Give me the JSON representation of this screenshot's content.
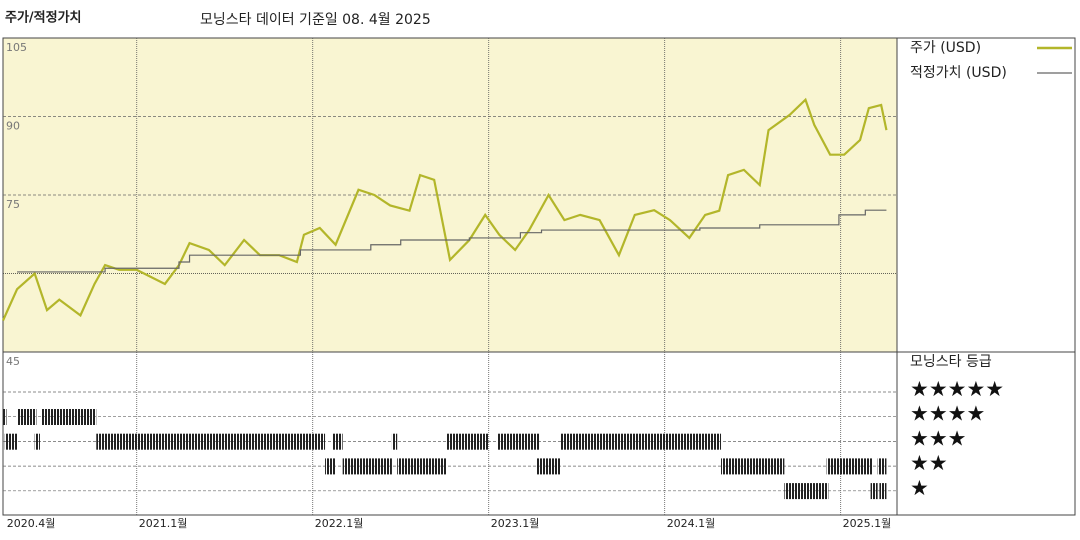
{
  "chart_data": {
    "type": "line",
    "title": "주가/적정가치",
    "subtitle": "모닝스타 데이터 기준일 08. 4월 2025",
    "xlim": [
      2020.24,
      2025.32
    ],
    "xticks": [
      {
        "value": 2020.25,
        "label": "2020.4월"
      },
      {
        "value": 2021,
        "label": "2021.1월"
      },
      {
        "value": 2022,
        "label": "2022.1월"
      },
      {
        "value": 2023,
        "label": "2023.1월"
      },
      {
        "value": 2024,
        "label": "2024.1월"
      },
      {
        "value": 2025,
        "label": "2025.1월"
      }
    ],
    "ylim": [
      45,
      105
    ],
    "yticks": [
      45,
      75,
      90,
      105
    ],
    "unlabeled_yticks": [
      60
    ],
    "series": [
      {
        "name": "주가 (USD)",
        "color": "#b3b62a",
        "step": false,
        "x": [
          2020.24,
          2020.32,
          2020.42,
          2020.49,
          2020.56,
          2020.68,
          2020.76,
          2020.82,
          2020.9,
          2021.0,
          2021.16,
          2021.24,
          2021.3,
          2021.41,
          2021.5,
          2021.61,
          2021.7,
          2021.81,
          2021.91,
          2021.95,
          2022.04,
          2022.13,
          2022.26,
          2022.35,
          2022.44,
          2022.55,
          2022.61,
          2022.69,
          2022.78,
          2022.89,
          2022.98,
          2023.06,
          2023.15,
          2023.23,
          2023.34,
          2023.43,
          2023.52,
          2023.63,
          2023.74,
          2023.83,
          2023.94,
          2024.03,
          2024.14,
          2024.23,
          2024.31,
          2024.36,
          2024.45,
          2024.54,
          2024.59,
          2024.71,
          2024.8,
          2024.85,
          2024.94,
          2025.02,
          2025.11,
          2025.16,
          2025.23,
          2025.26
        ],
        "values": [
          51,
          57,
          60,
          53,
          55,
          52,
          58,
          61.6,
          60.7,
          60.7,
          58,
          61.6,
          65.8,
          64.5,
          61.6,
          66.4,
          63.5,
          63.5,
          62.2,
          67.4,
          68.7,
          65.5,
          76,
          75,
          73,
          72,
          78.8,
          77.9,
          62.6,
          66.4,
          71.2,
          67.4,
          64.5,
          68.3,
          75,
          70.2,
          71.2,
          70.2,
          63.5,
          71.2,
          72.1,
          70.2,
          66.8,
          71.2,
          72,
          78.8,
          79.8,
          76.9,
          87.4,
          90.3,
          93.2,
          88.4,
          82.7,
          82.7,
          85.5,
          91.6,
          92.2,
          87.4
        ]
      },
      {
        "name": "적정가치 (USD)",
        "color": "#666666",
        "step": true,
        "x": [
          2020.32,
          2020.82,
          2021.24,
          2021.3,
          2021.93,
          2022.33,
          2022.5,
          2022.89,
          2023.18,
          2023.3,
          2024.2,
          2024.54,
          2024.99,
          2025.14,
          2025.26
        ],
        "values": [
          60.3,
          61,
          62.2,
          63.5,
          64.5,
          65.5,
          66.4,
          66.8,
          67.8,
          68.3,
          68.7,
          69.3,
          71.2,
          72.1,
          72.1
        ]
      }
    ],
    "rating": {
      "title": "모닝스타 등급",
      "levels": [
        "★★★★★",
        "★★★★",
        "★★★",
        "★★",
        "★"
      ],
      "level_stars": [
        5,
        4,
        3,
        2,
        1
      ],
      "periods": [
        {
          "stars": 4,
          "start": 2020.24,
          "end": 2020.26
        },
        {
          "stars": 4,
          "start": 2020.32,
          "end": 2020.43
        },
        {
          "stars": 4,
          "start": 2020.46,
          "end": 2020.77
        },
        {
          "stars": 3,
          "start": 2020.25,
          "end": 2020.32
        },
        {
          "stars": 3,
          "start": 2020.42,
          "end": 2020.45
        },
        {
          "stars": 3,
          "start": 2020.77,
          "end": 2022.07
        },
        {
          "stars": 3,
          "start": 2022.11,
          "end": 2022.17
        },
        {
          "stars": 3,
          "start": 2022.45,
          "end": 2022.48
        },
        {
          "stars": 3,
          "start": 2022.76,
          "end": 2023.0
        },
        {
          "stars": 3,
          "start": 2023.05,
          "end": 2023.29
        },
        {
          "stars": 3,
          "start": 2023.41,
          "end": 2024.32
        },
        {
          "stars": 2,
          "start": 2022.07,
          "end": 2022.13
        },
        {
          "stars": 2,
          "start": 2022.17,
          "end": 2022.45
        },
        {
          "stars": 2,
          "start": 2022.48,
          "end": 2022.76
        },
        {
          "stars": 2,
          "start": 2023.27,
          "end": 2023.41
        },
        {
          "stars": 2,
          "start": 2024.32,
          "end": 2024.68
        },
        {
          "stars": 2,
          "start": 2024.92,
          "end": 2025.18
        },
        {
          "stars": 2,
          "start": 2025.21,
          "end": 2025.26
        },
        {
          "stars": 1,
          "start": 2024.68,
          "end": 2024.93
        },
        {
          "stars": 1,
          "start": 2025.17,
          "end": 2025.21
        },
        {
          "stars": 1,
          "start": 2025.22,
          "end": 2025.26
        }
      ]
    }
  }
}
